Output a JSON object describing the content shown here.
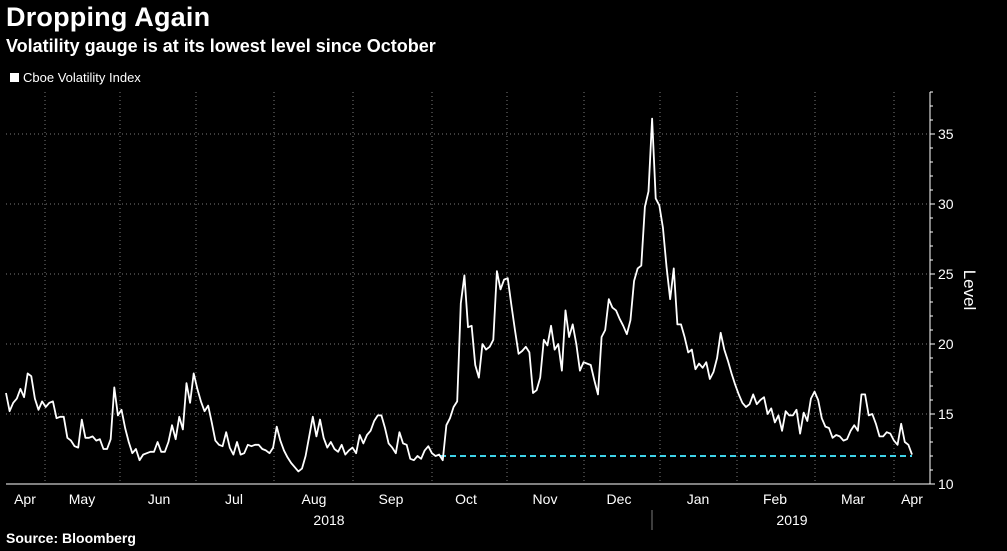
{
  "chart_data": {
    "type": "line",
    "title": "Dropping Again",
    "subtitle": "Volatility gauge is at its lowest level since October",
    "source": "Source: Bloomberg",
    "ylabel": "Level",
    "ylim": [
      10,
      38
    ],
    "yticks": [
      10,
      15,
      20,
      25,
      30,
      35
    ],
    "legend_position": "top-left",
    "grid": true,
    "series": [
      {
        "name": "Cboe Volatility Index",
        "color": "#ffffff",
        "values": [
          16.5,
          15.2,
          15.8,
          16.1,
          16.8,
          16.2,
          17.9,
          17.7,
          16.1,
          15.3,
          15.9,
          15.5,
          15.8,
          15.9,
          14.7,
          14.8,
          14.8,
          13.3,
          13.1,
          12.7,
          12.6,
          14.6,
          13.3,
          13.3,
          13.4,
          13.1,
          13.2,
          12.5,
          12.5,
          13.2,
          16.9,
          14.9,
          15.3,
          14.0,
          13.0,
          12.2,
          12.5,
          11.7,
          12.1,
          12.2,
          12.3,
          12.3,
          13.0,
          12.3,
          12.3,
          13.0,
          14.2,
          13.2,
          14.8,
          13.9,
          17.2,
          15.8,
          17.9,
          16.8,
          15.9,
          15.2,
          15.6,
          14.4,
          13.1,
          12.8,
          12.7,
          13.7,
          12.6,
          12.1,
          13.0,
          12.1,
          12.2,
          12.8,
          12.7,
          12.8,
          12.8,
          12.5,
          12.4,
          12.2,
          12.6,
          14.1,
          13.1,
          12.4,
          11.9,
          11.5,
          11.2,
          10.9,
          11.1,
          12.0,
          13.4,
          14.8,
          13.4,
          14.6,
          13.3,
          12.6,
          13.0,
          12.5,
          12.3,
          12.8,
          12.1,
          12.4,
          12.6,
          12.2,
          13.5,
          12.9,
          13.5,
          13.8,
          14.5,
          14.9,
          14.9,
          14.0,
          12.9,
          12.6,
          12.2,
          13.7,
          12.9,
          12.8,
          11.8,
          11.7,
          12.0,
          11.8,
          12.4,
          12.7,
          12.2,
          12.0,
          12.1,
          11.7,
          14.2,
          14.7,
          15.5,
          15.9,
          22.9,
          24.9,
          21.2,
          21.3,
          18.5,
          17.6,
          20.0,
          19.6,
          19.8,
          20.3,
          25.2,
          23.9,
          24.6,
          24.7,
          22.8,
          21.0,
          19.3,
          19.5,
          19.8,
          19.4,
          16.5,
          16.7,
          17.6,
          20.3,
          19.9,
          21.3,
          19.6,
          20.0,
          18.1,
          22.4,
          20.5,
          21.4,
          20.0,
          18.1,
          18.7,
          18.6,
          18.5,
          17.4,
          16.4,
          20.5,
          21.0,
          23.2,
          22.6,
          22.4,
          21.8,
          21.3,
          20.7,
          21.7,
          24.5,
          25.4,
          25.6,
          29.8,
          30.9,
          36.1,
          30.4,
          29.9,
          28.3,
          25.5,
          23.2,
          25.4,
          21.4,
          21.4,
          20.5,
          19.4,
          19.6,
          18.2,
          18.6,
          18.3,
          18.7,
          17.5,
          18.0,
          19.0,
          20.8,
          19.6,
          18.8,
          17.9,
          17.1,
          16.4,
          15.8,
          15.5,
          15.7,
          16.4,
          15.7,
          16.0,
          16.2,
          15.0,
          15.4,
          14.4,
          14.9,
          13.8,
          15.2,
          14.9,
          14.9,
          15.3,
          13.6,
          15.1,
          14.5,
          16.1,
          16.6,
          16.0,
          14.7,
          14.1,
          14.0,
          13.3,
          13.5,
          13.4,
          13.1,
          13.2,
          13.8,
          14.2,
          13.8,
          16.4,
          16.4,
          14.9,
          15.0,
          14.3,
          13.4,
          13.4,
          13.7,
          13.6,
          13.1,
          12.8,
          14.3,
          13.0,
          12.8,
          12.1
        ]
      }
    ],
    "reference_line": {
      "value": 12.0,
      "color": "#3fd2e8",
      "style": "dashed"
    },
    "x_month_labels": [
      "Apr",
      "May",
      "Jun",
      "Jul",
      "Aug",
      "Sep",
      "Oct",
      "Nov",
      "Dec",
      "Jan",
      "Feb",
      "Mar",
      "Apr"
    ],
    "x_year_labels": [
      "2018",
      "2019"
    ]
  },
  "colors": {
    "background": "#000000",
    "grid": "#7a7a7a",
    "line": "#ffffff",
    "reference": "#3fd2e8"
  }
}
